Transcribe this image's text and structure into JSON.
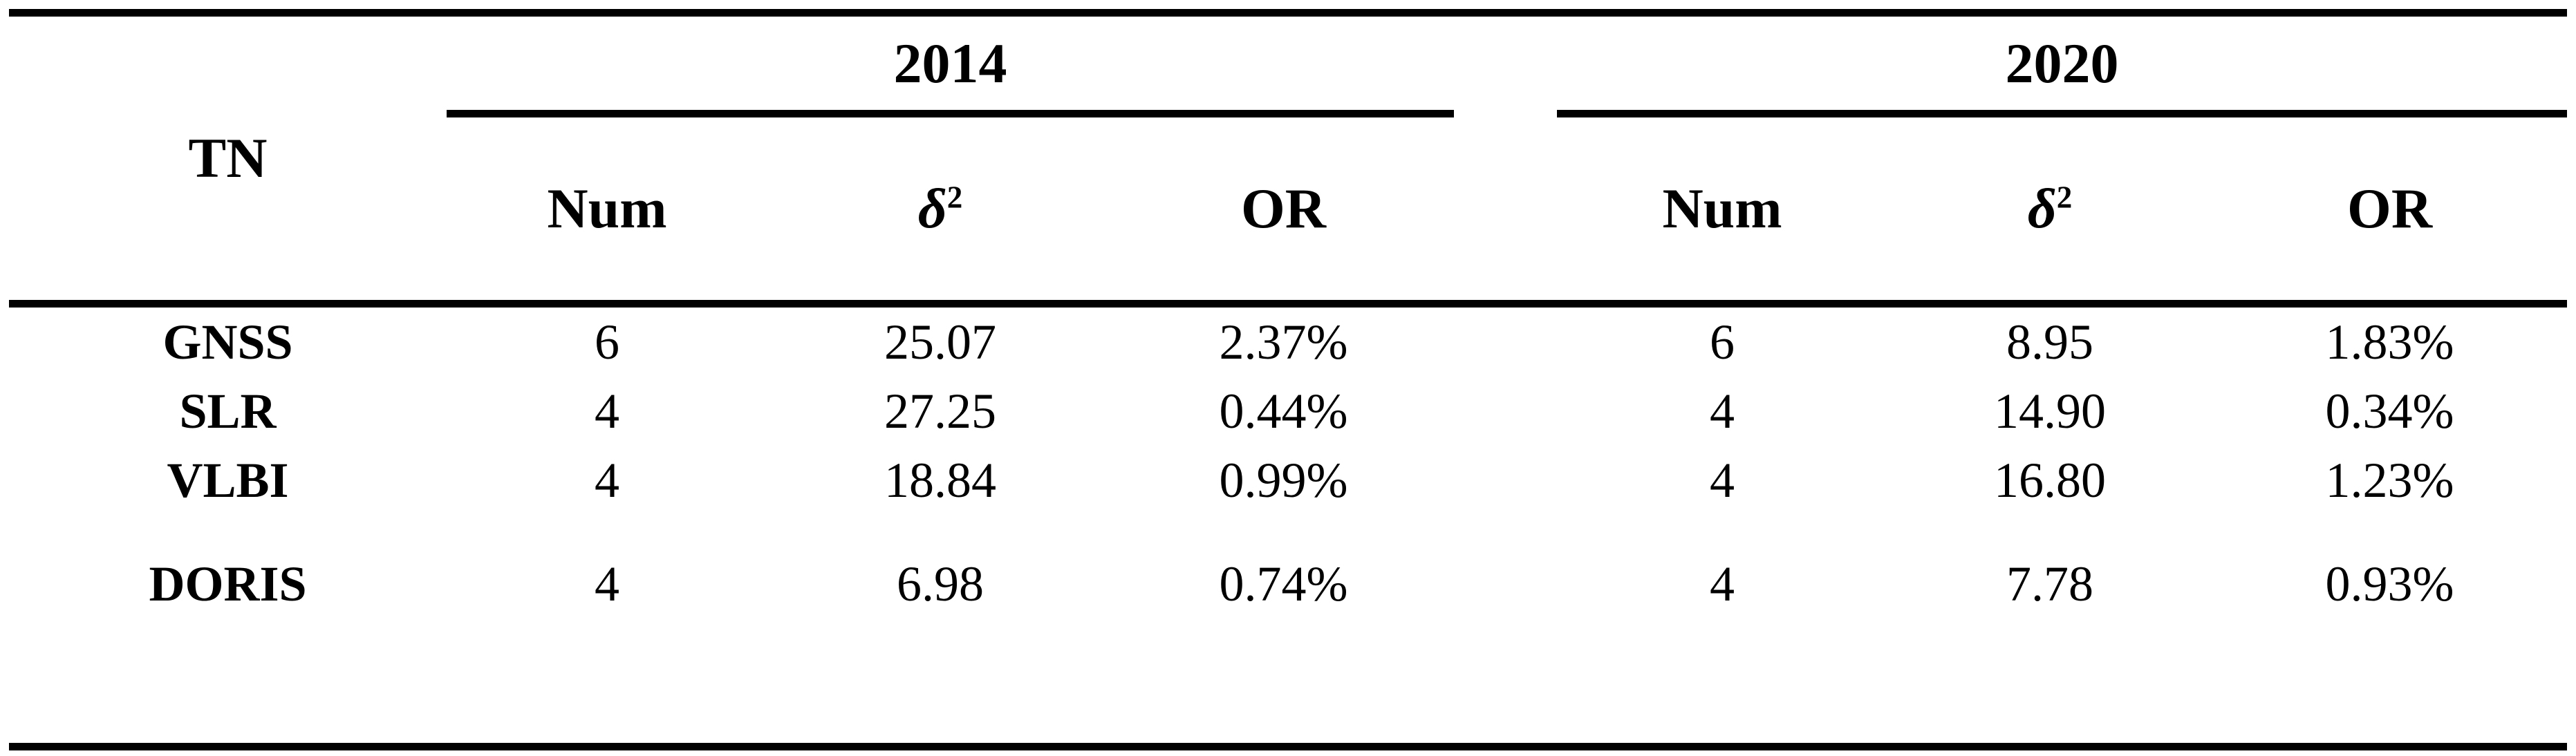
{
  "colors": {
    "background": "#ffffff",
    "text": "#000000",
    "rule": "#000000"
  },
  "table": {
    "corner_header": "TN",
    "delta_symbol": "δ",
    "delta_exponent": "2",
    "groups": [
      {
        "label": "2014",
        "col_num": "Num",
        "col_or": "OR"
      },
      {
        "label": "2020",
        "col_num": "Num",
        "col_or": "OR"
      }
    ],
    "rows": [
      {
        "tn": "GNSS",
        "cells": [
          "6",
          "25.07",
          "2.37%",
          "6",
          "8.95",
          "1.83%"
        ]
      },
      {
        "tn": "SLR",
        "cells": [
          "4",
          "27.25",
          "0.44%",
          "4",
          "14.90",
          "0.34%"
        ]
      },
      {
        "tn": "VLBI",
        "cells": [
          "4",
          "18.84",
          "0.99%",
          "4",
          "16.80",
          "1.23%"
        ]
      },
      {
        "tn": "DORIS",
        "cells": [
          "4",
          "6.98",
          "0.74%",
          "4",
          "7.78",
          "0.93%"
        ]
      }
    ]
  }
}
